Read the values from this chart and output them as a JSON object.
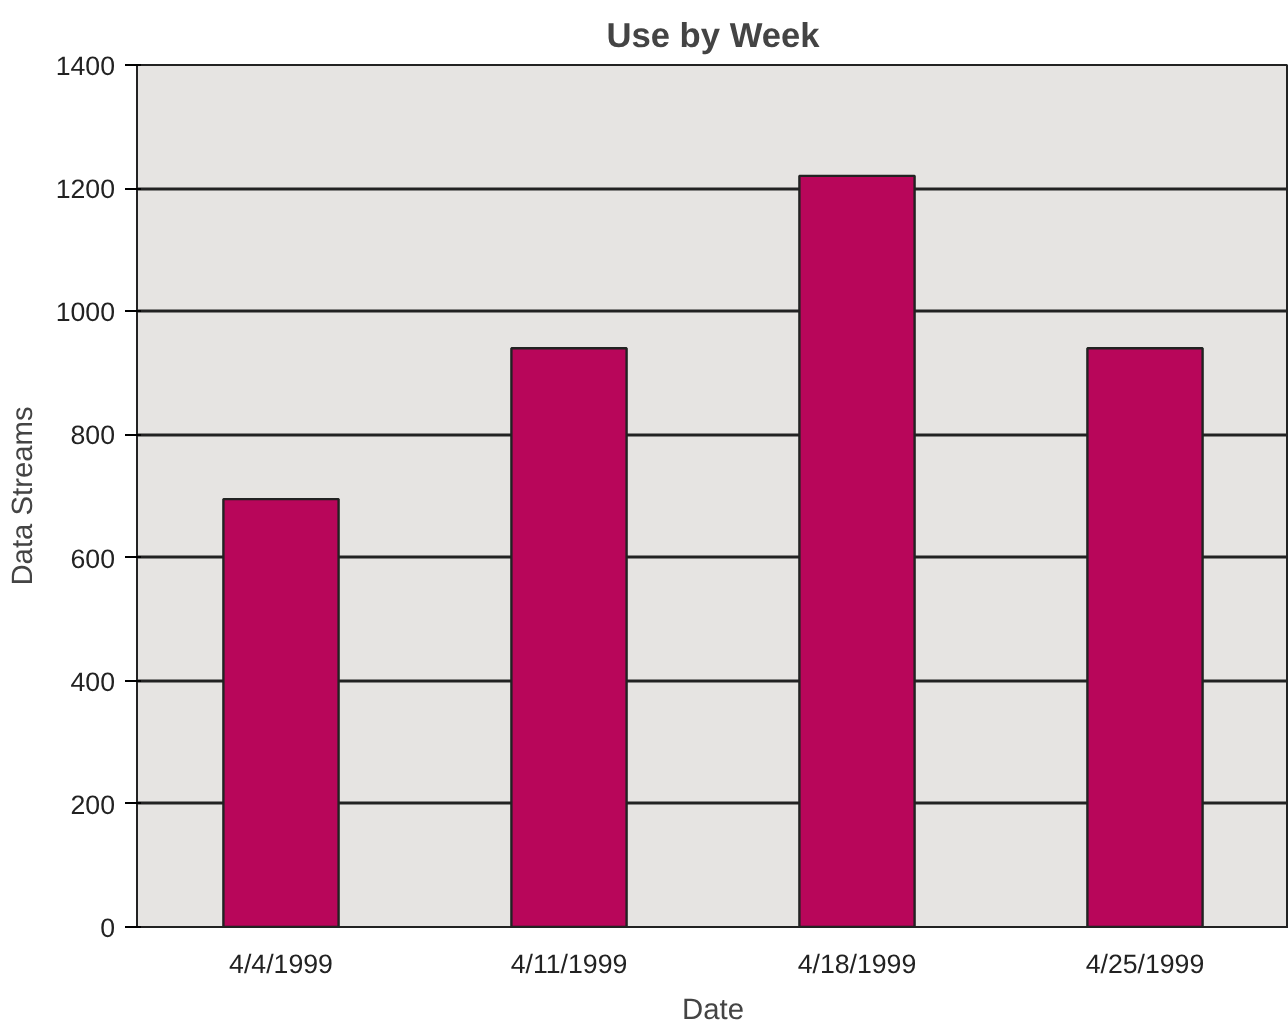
{
  "chart_data": {
    "type": "bar",
    "title": "Use by Week",
    "xlabel": "Date",
    "ylabel": "Data Streams",
    "categories": [
      "4/4/1999",
      "4/11/1999",
      "4/18/1999",
      "4/25/1999"
    ],
    "values": [
      695,
      940,
      1220,
      940
    ],
    "color": "#b8065a",
    "ylim": [
      0,
      1400
    ],
    "yticks": [
      0,
      200,
      400,
      600,
      800,
      1000,
      1200,
      1400
    ],
    "grid": "y"
  }
}
